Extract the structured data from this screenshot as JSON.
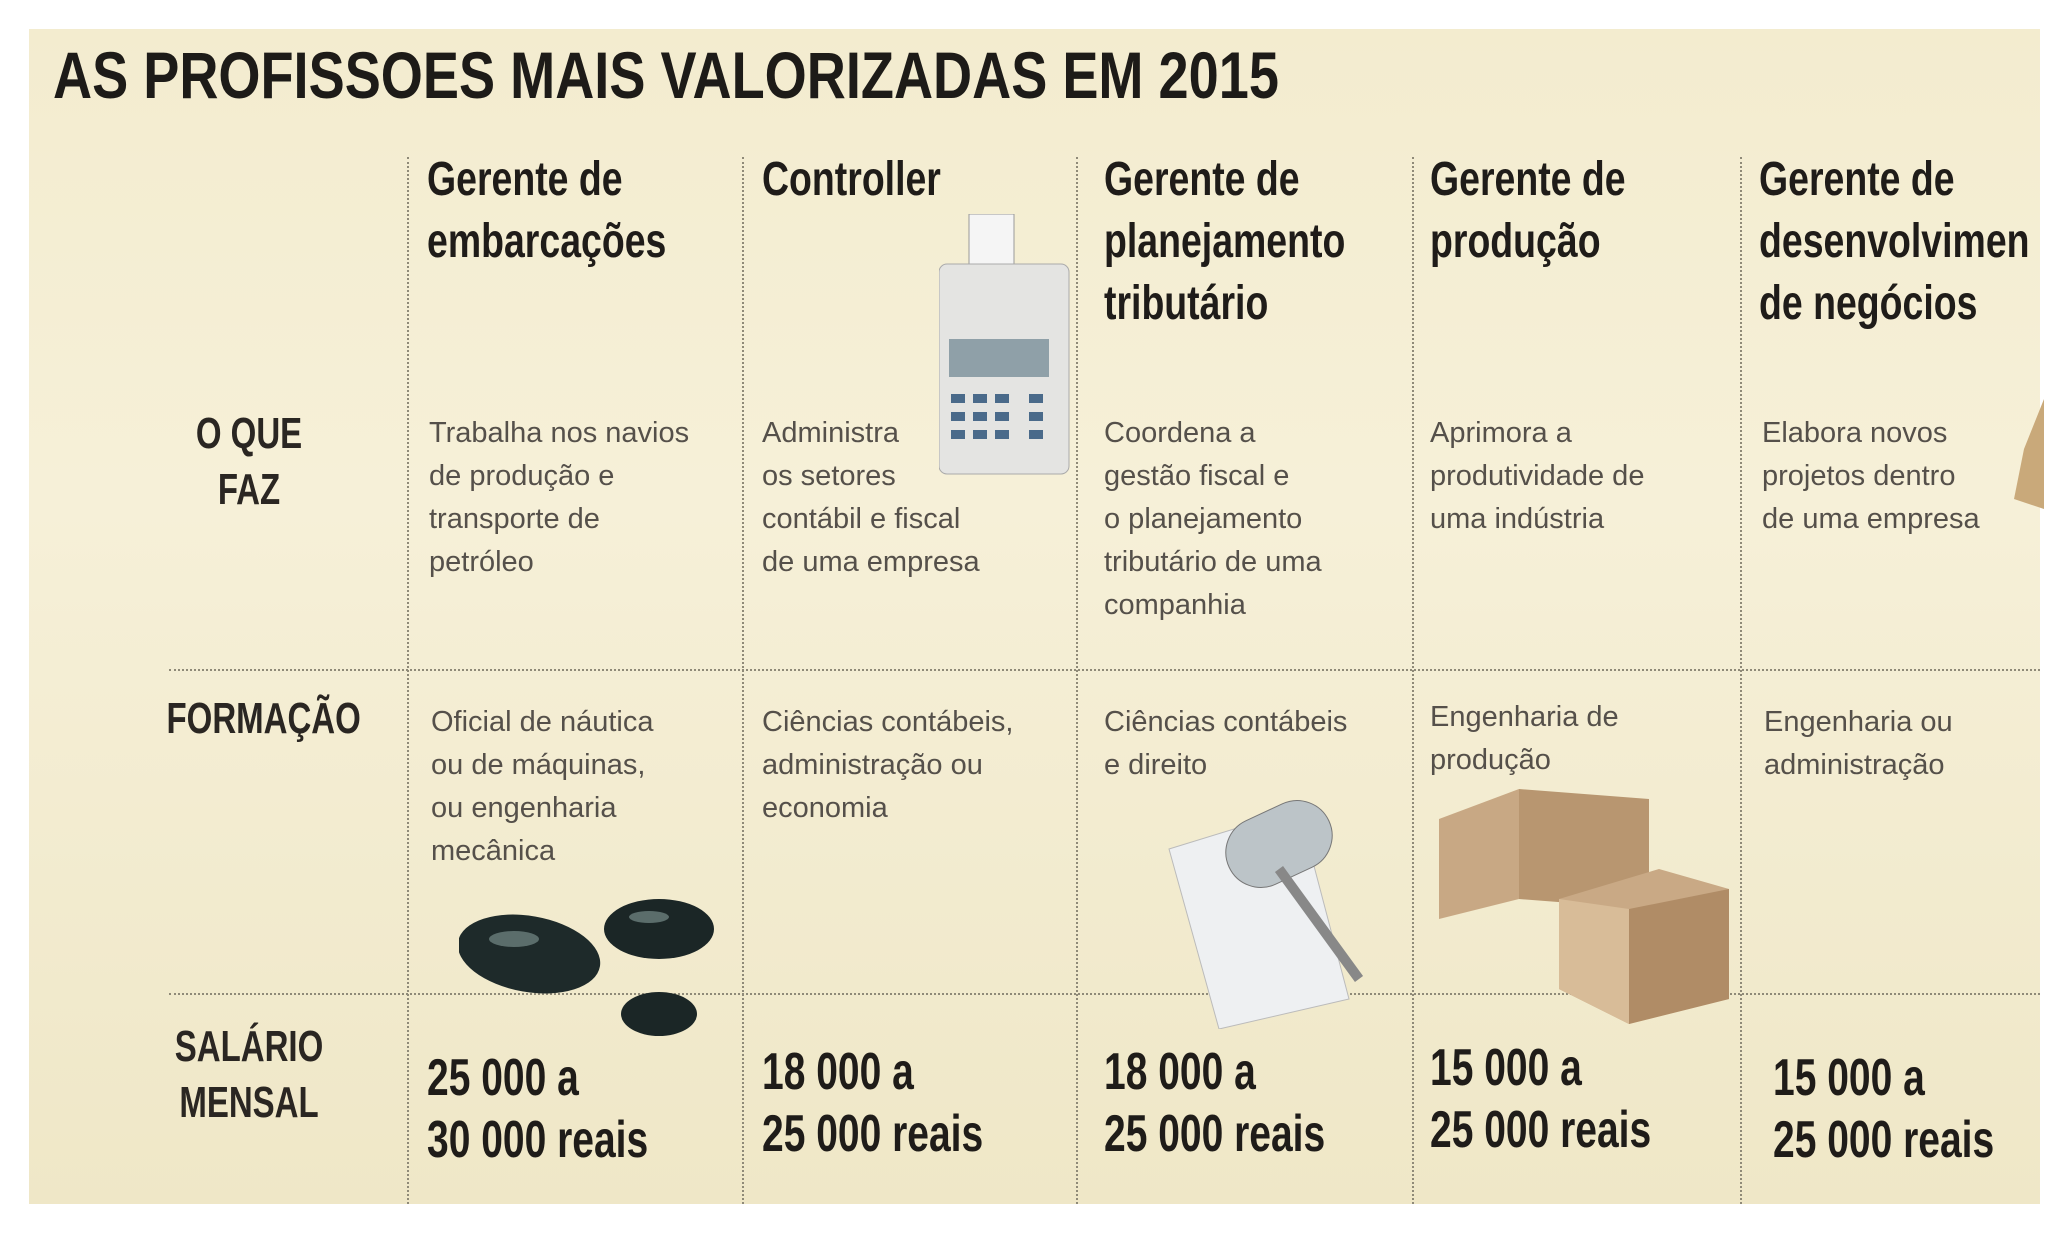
{
  "title": "AS PROFISSOES MAIS VALORIZADAS EM 2015",
  "row_labels": {
    "what": "O QUE FAZ",
    "education": "FORMAÇÃO",
    "salary": "SALÁRIO\nMENSAL"
  },
  "professions": [
    {
      "name": "Gerente de\nembarcações",
      "what": "Trabalha nos navios\nde produção e\ntransporte de\npetróleo",
      "education": "Oficial de náutica\nou de máquinas,\nou engenharia\nmecânica",
      "salary": "25 000 a\n30 000 reais",
      "icon": "oil-drops-icon"
    },
    {
      "name": "Controller",
      "what": "Administra\nos setores\ncontábil e fiscal\nde uma empresa",
      "education": "Ciências contábeis,\nadministração ou\neconomia",
      "salary": "18 000 a\n25 000 reais",
      "icon": "calculator-icon"
    },
    {
      "name": "Gerente de\nplanejamento\ntributário",
      "what": "Coordena a\ngestão fiscal e\no planejamento\ntributário de uma\ncompanhia",
      "education": "Ciências contábeis\ne direito",
      "salary": "18 000 a\n25 000 reais",
      "icon": "gavel-icon"
    },
    {
      "name": "Gerente de\nprodução",
      "what": "Aprimora a\nprodutividade de\numa indústria",
      "education": "Engenharia de\nprodução",
      "salary": "15 000 a\n25 000 reais",
      "icon": "boxes-icon"
    },
    {
      "name": "Gerente de\ndesenvolvimen\nde negócios",
      "what": "Elabora novos\nprojetos dentro\nde uma empresa",
      "education": "Engenharia ou\nadministração",
      "salary": "15 000 a\n25 000 reais",
      "icon": "scroll-icon"
    }
  ]
}
